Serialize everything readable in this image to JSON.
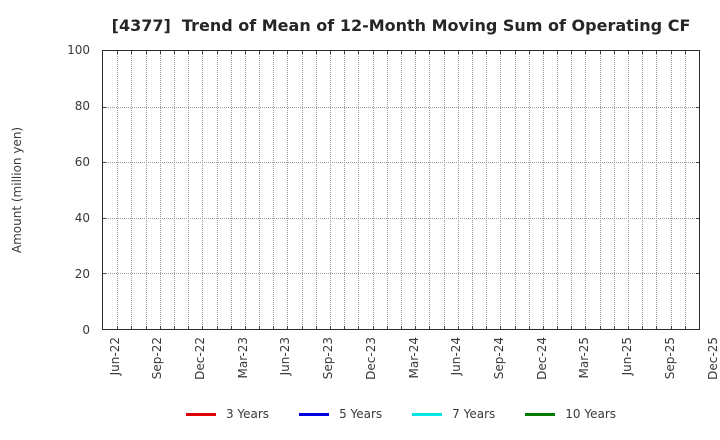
{
  "chart": {
    "title": "[4377]  Trend of Mean of 12-Month Moving Sum of Operating CF",
    "y_axis_label": "Amount (million yen)"
  },
  "chart_data": {
    "type": "line",
    "title": "[4377]  Trend of Mean of 12-Month Moving Sum of Operating CF",
    "xlabel": "",
    "ylabel": "Amount (million yen)",
    "ylim": [
      0,
      100
    ],
    "y_ticks": [
      0,
      20,
      40,
      60,
      80,
      100
    ],
    "x_start": "Jun-22",
    "x_end": "Dec-25",
    "months_span": 42,
    "x_label_step_months": 3,
    "x_tick_labels": [
      "Jun-22",
      "Sep-22",
      "Dec-22",
      "Mar-23",
      "Jun-23",
      "Sep-23",
      "Dec-23",
      "Mar-24",
      "Jun-24",
      "Sep-24",
      "Dec-24",
      "Mar-25",
      "Jun-25",
      "Sep-25",
      "Dec-25"
    ],
    "grid": true,
    "grid_style": "dotted",
    "legend_position": "bottom-center",
    "series": [
      {
        "name": "3 Years",
        "color": "#dd0000",
        "values": []
      },
      {
        "name": "5 Years",
        "color": "#0000dd",
        "values": []
      },
      {
        "name": "7 Years",
        "color": "#00e5e5",
        "values": []
      },
      {
        "name": "10 Years",
        "color": "#007a00",
        "values": []
      }
    ]
  }
}
